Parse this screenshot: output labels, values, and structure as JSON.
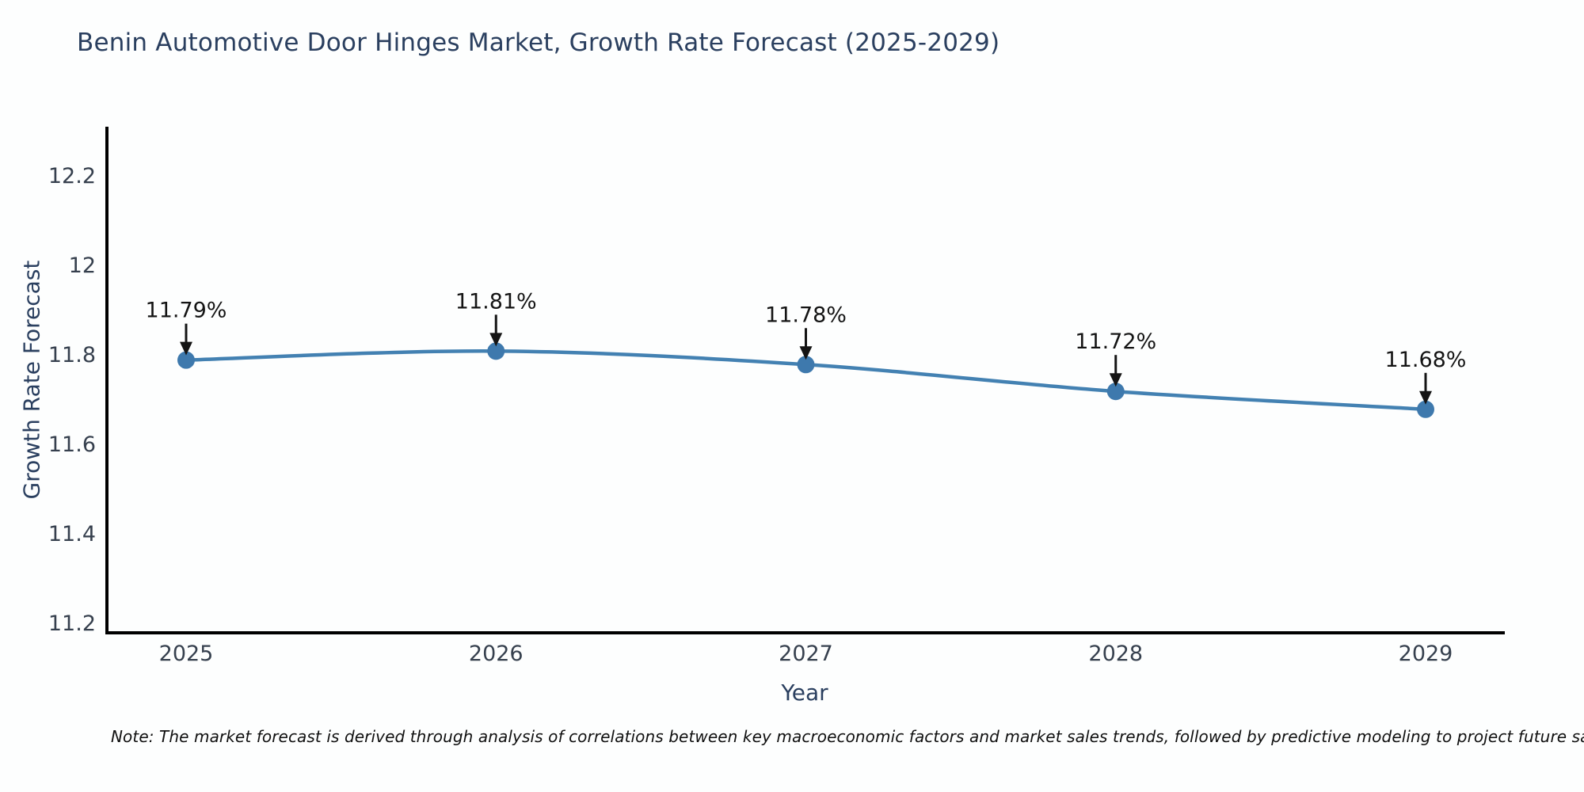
{
  "title": "Benin Automotive Door Hinges Market, Growth Rate Forecast (2025-2029)",
  "note": "Note: The market forecast is derived through analysis of correlations between key macroeconomic factors and market sales trends, followed by predictive modeling to project future sal",
  "chart_data": {
    "type": "line",
    "x": [
      2025,
      2026,
      2027,
      2028,
      2029
    ],
    "xtick_labels": [
      "2025",
      "2026",
      "2027",
      "2028",
      "2029"
    ],
    "series": [
      {
        "name": "Growth Rate Forecast",
        "values": [
          11.79,
          11.81,
          11.78,
          11.72,
          11.68
        ]
      }
    ],
    "point_labels": [
      "11.79%",
      "11.81%",
      "11.78%",
      "11.72%",
      "11.68%"
    ],
    "title": "Benin Automotive Door Hinges Market, Growth Rate Forecast (2025-2029)",
    "xlabel": "Year",
    "ylabel": "Growth Rate Forecast",
    "ylim": [
      11.2,
      12.2
    ],
    "yticks": [
      11.2,
      11.4,
      11.6,
      11.8,
      12,
      12.2
    ],
    "ytick_labels": [
      "11.2",
      "11.4",
      "11.6",
      "11.8",
      "12",
      "12.2"
    ],
    "grid": false,
    "legend_position": "none",
    "colors": {
      "line": "#4381b2",
      "marker": "#3e79ad",
      "annotation": "#141414",
      "axis_line": "#000000",
      "title_text": "#2a3f5f",
      "tick_text": "#36404e"
    }
  }
}
